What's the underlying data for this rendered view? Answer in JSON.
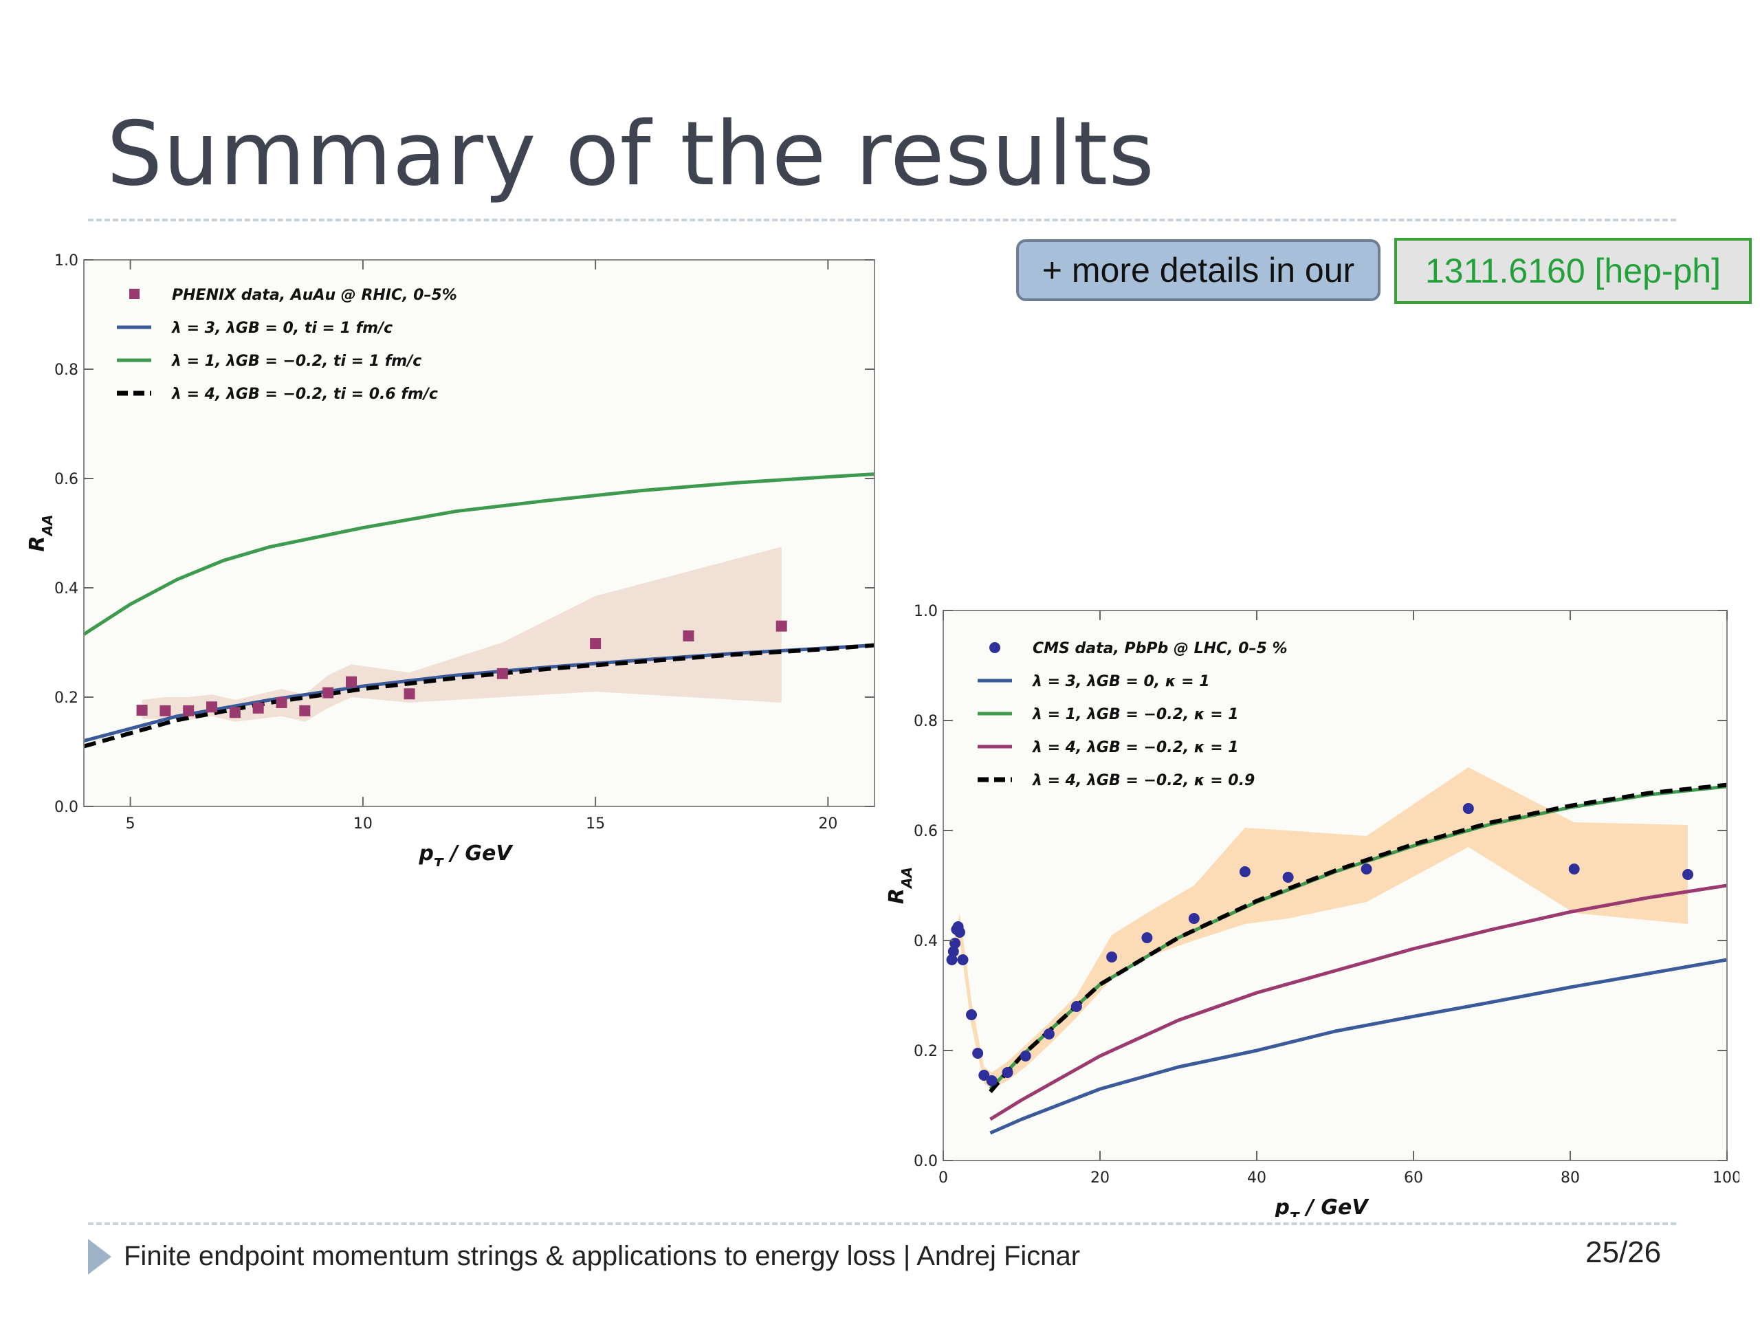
{
  "slide": {
    "title": "Summary of the results",
    "more_details": "+ more details in our",
    "arxiv_id": "1311.6160 [hep-ph]",
    "footer": "Finite endpoint momentum strings & applications to energy loss  |  Andrej Ficnar",
    "page": "25/26",
    "colors": {
      "blue": "#3b5a9a",
      "green": "#3e9a4f",
      "magenta": "#9a3a6e",
      "black": "#000000",
      "phenix": "#9a3a6e",
      "cms": "#2e2f9a",
      "band_rhic": "#f0e0d6",
      "band_lhc": "#fbdcb6"
    }
  },
  "chart_data": [
    {
      "type": "line",
      "xlabel": "p_T / GeV",
      "ylabel": "R_AA",
      "xlim": [
        4,
        21
      ],
      "ylim": [
        0,
        1.0
      ],
      "xticks": [
        5,
        10,
        15,
        20
      ],
      "yticks": [
        0.0,
        0.2,
        0.4,
        0.6,
        0.8,
        1.0
      ],
      "grid": false,
      "legend": "top-left",
      "legend_entries": [
        "PHENIX data, AuAu @ RHIC, 0–5%",
        "λ = 3, λGB = 0, ti = 1 fm/c",
        "λ = 1, λGB = −0.2, ti = 1 fm/c",
        "λ = 4, λGB = −0.2, ti = 0.6 fm/c"
      ],
      "series": [
        {
          "name": "PHENIX data, AuAu @ RHIC, 0–5%",
          "kind": "points",
          "x": [
            5.25,
            5.75,
            6.25,
            6.75,
            7.25,
            7.75,
            8.25,
            8.75,
            9.25,
            9.75,
            11.0,
            13.0,
            15.0,
            17.0,
            19.0
          ],
          "y": [
            0.176,
            0.175,
            0.175,
            0.182,
            0.172,
            0.18,
            0.19,
            0.175,
            0.208,
            0.228,
            0.206,
            0.243,
            0.298,
            0.312,
            0.33
          ],
          "band_low": [
            0.16,
            0.16,
            0.158,
            0.165,
            0.155,
            0.16,
            0.165,
            0.155,
            0.18,
            0.2,
            0.19,
            0.2,
            0.21,
            0.2,
            0.19
          ],
          "band_high": [
            0.195,
            0.2,
            0.2,
            0.205,
            0.195,
            0.205,
            0.215,
            0.205,
            0.24,
            0.26,
            0.245,
            0.3,
            0.385,
            0.43,
            0.475
          ]
        },
        {
          "name": "λ = 3, λGB = 0, ti = 1 fm/c",
          "kind": "line",
          "x": [
            4,
            6,
            8,
            10,
            12,
            14,
            16,
            18,
            20,
            21
          ],
          "y": [
            0.12,
            0.165,
            0.195,
            0.22,
            0.24,
            0.255,
            0.268,
            0.28,
            0.29,
            0.295
          ]
        },
        {
          "name": "λ = 1, λGB = −0.2, ti = 1 fm/c",
          "kind": "line",
          "x": [
            4,
            5,
            6,
            7,
            8,
            10,
            12,
            14,
            16,
            18,
            20,
            21
          ],
          "y": [
            0.315,
            0.37,
            0.415,
            0.45,
            0.475,
            0.51,
            0.54,
            0.56,
            0.578,
            0.592,
            0.603,
            0.608
          ]
        },
        {
          "name": "λ = 4, λGB = −0.2, ti = 0.6 fm/c",
          "kind": "dashed",
          "x": [
            4,
            6,
            8,
            10,
            12,
            14,
            16,
            18,
            20,
            21
          ],
          "y": [
            0.11,
            0.158,
            0.19,
            0.215,
            0.235,
            0.252,
            0.265,
            0.278,
            0.288,
            0.295
          ]
        }
      ]
    },
    {
      "type": "line",
      "xlabel": "p_T / GeV",
      "ylabel": "R_AA",
      "xlim": [
        0,
        100
      ],
      "ylim": [
        0,
        1.0
      ],
      "xticks": [
        0,
        20,
        40,
        60,
        80,
        100
      ],
      "yticks": [
        0.0,
        0.2,
        0.4,
        0.6,
        0.8,
        1.0
      ],
      "grid": false,
      "legend": "top-left",
      "legend_entries": [
        "CMS data, PbPb @ LHC, 0–5 %",
        "λ = 3, λGB = 0, κ = 1",
        "λ = 1, λGB = −0.2, κ = 1",
        "λ = 4, λGB = −0.2, κ = 1",
        "λ = 4, λGB = −0.2, κ = 0.9"
      ],
      "series": [
        {
          "name": "CMS data, PbPb @ LHC, 0–5 %",
          "kind": "points",
          "x": [
            1.1,
            1.3,
            1.5,
            1.7,
            1.9,
            2.1,
            2.5,
            3.6,
            4.4,
            5.2,
            6.2,
            8.2,
            10.5,
            13.5,
            17,
            21.5,
            26,
            32,
            38.5,
            44,
            54,
            67,
            80.5,
            95
          ],
          "y": [
            0.365,
            0.38,
            0.395,
            0.42,
            0.425,
            0.415,
            0.365,
            0.265,
            0.195,
            0.155,
            0.145,
            0.16,
            0.19,
            0.23,
            0.28,
            0.37,
            0.405,
            0.44,
            0.525,
            0.515,
            0.53,
            0.64,
            0.53,
            0.52
          ],
          "band_x": [
            1.1,
            2.1,
            3.6,
            5.2,
            6.2,
            8.2,
            10.5,
            13.5,
            17,
            21.5,
            26,
            32,
            38.5,
            44,
            54,
            67,
            80.5,
            95
          ],
          "band_low": [
            0.35,
            0.4,
            0.245,
            0.14,
            0.13,
            0.145,
            0.17,
            0.21,
            0.26,
            0.33,
            0.37,
            0.4,
            0.43,
            0.44,
            0.47,
            0.57,
            0.45,
            0.43
          ],
          "band_high": [
            0.38,
            0.45,
            0.29,
            0.17,
            0.16,
            0.18,
            0.21,
            0.25,
            0.3,
            0.41,
            0.45,
            0.5,
            0.605,
            0.6,
            0.59,
            0.715,
            0.615,
            0.61
          ]
        },
        {
          "name": "λ = 3, λGB = 0, κ = 1",
          "kind": "line",
          "x": [
            6,
            10,
            20,
            30,
            40,
            50,
            60,
            70,
            80,
            90,
            100
          ],
          "y": [
            0.05,
            0.075,
            0.13,
            0.17,
            0.2,
            0.235,
            0.262,
            0.288,
            0.315,
            0.34,
            0.365
          ]
        },
        {
          "name": "λ = 1, λGB = −0.2, κ = 1",
          "kind": "line",
          "x": [
            6,
            8,
            10,
            15,
            20,
            30,
            40,
            50,
            60,
            70,
            80,
            90,
            100
          ],
          "y": [
            0.13,
            0.16,
            0.19,
            0.255,
            0.32,
            0.405,
            0.47,
            0.525,
            0.572,
            0.612,
            0.642,
            0.665,
            0.68
          ]
        },
        {
          "name": "λ = 4, λGB = −0.2, κ = 1",
          "kind": "line",
          "x": [
            6,
            10,
            20,
            30,
            40,
            50,
            60,
            70,
            80,
            90,
            100
          ],
          "y": [
            0.075,
            0.11,
            0.19,
            0.255,
            0.305,
            0.345,
            0.385,
            0.42,
            0.452,
            0.478,
            0.5
          ]
        },
        {
          "name": "λ = 4, λGB = −0.2, κ = 0.9",
          "kind": "dashed",
          "x": [
            6,
            8,
            10,
            15,
            20,
            30,
            40,
            50,
            60,
            70,
            80,
            90,
            100
          ],
          "y": [
            0.125,
            0.158,
            0.19,
            0.255,
            0.32,
            0.405,
            0.472,
            0.527,
            0.575,
            0.615,
            0.645,
            0.668,
            0.683
          ]
        }
      ]
    }
  ]
}
